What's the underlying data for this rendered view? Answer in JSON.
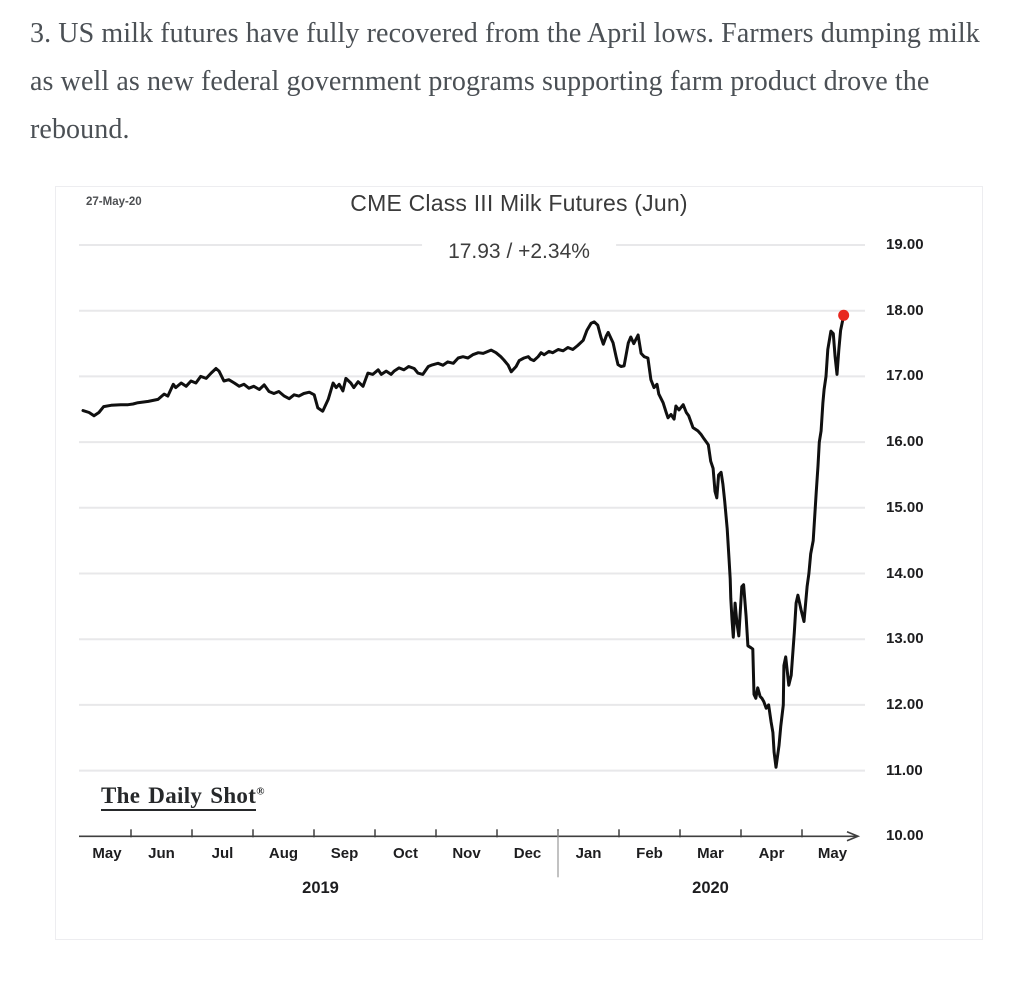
{
  "caption": {
    "text": "3. US milk futures have fully recovered from the April lows. Farmers dumping milk as well as new federal government programs supporting farm product drove the rebound."
  },
  "chart": {
    "date_stamp": "27-May-20",
    "title": "CME Class III Milk Futures (Jun)",
    "subtitle": "17.93  /  +2.34%",
    "watermark": "The Daily Shot",
    "watermark_mark": "®",
    "line_color": "#101010",
    "dot_color": "#e8271e",
    "grid_color": "#e8e8ea",
    "axis_color": "#3f3f3f",
    "divider_color": "#999999"
  },
  "chart_data": {
    "type": "line",
    "title": "CME Class III Milk Futures (Jun)",
    "as_of_date": "27-May-20",
    "last_value": 17.93,
    "change_pct": 2.34,
    "x_unit": "months since 2019-05-01 (0 = May 1, 2019)",
    "x_tick_labels": [
      "May",
      "Jun",
      "Jul",
      "Aug",
      "Sep",
      "Oct",
      "Nov",
      "Dec",
      "Jan",
      "Feb",
      "Mar",
      "Apr",
      "May"
    ],
    "year_labels": [
      "2019",
      "2020"
    ],
    "y_ticks": [
      19,
      18,
      17,
      16,
      15,
      14,
      13,
      12,
      11,
      10
    ],
    "y_tick_labels": [
      "19.00",
      "18.00",
      "17.00",
      "16.00",
      "15.00",
      "14.00",
      "13.00",
      "12.00",
      "11.00",
      "10.00"
    ],
    "ylim": [
      10,
      19.5
    ],
    "grid": true,
    "legend": false,
    "marker_on_last_point": true,
    "points": [
      [
        0.21,
        16.48
      ],
      [
        0.31,
        16.45
      ],
      [
        0.39,
        16.4
      ],
      [
        0.47,
        16.45
      ],
      [
        0.55,
        16.54
      ],
      [
        0.67,
        16.56
      ],
      [
        0.83,
        16.57
      ],
      [
        0.95,
        16.57
      ],
      [
        1.03,
        16.58
      ],
      [
        1.11,
        16.6
      ],
      [
        1.28,
        16.62
      ],
      [
        1.44,
        16.65
      ],
      [
        1.54,
        16.73
      ],
      [
        1.6,
        16.7
      ],
      [
        1.69,
        16.88
      ],
      [
        1.73,
        16.83
      ],
      [
        1.82,
        16.9
      ],
      [
        1.9,
        16.85
      ],
      [
        1.98,
        16.93
      ],
      [
        2.06,
        16.9
      ],
      [
        2.14,
        17.0
      ],
      [
        2.23,
        16.97
      ],
      [
        2.31,
        17.05
      ],
      [
        2.39,
        17.12
      ],
      [
        2.44,
        17.08
      ],
      [
        2.52,
        16.93
      ],
      [
        2.6,
        16.95
      ],
      [
        2.69,
        16.9
      ],
      [
        2.77,
        16.85
      ],
      [
        2.85,
        16.88
      ],
      [
        2.93,
        16.82
      ],
      [
        3.01,
        16.85
      ],
      [
        3.1,
        16.8
      ],
      [
        3.18,
        16.87
      ],
      [
        3.26,
        16.77
      ],
      [
        3.34,
        16.74
      ],
      [
        3.42,
        16.77
      ],
      [
        3.51,
        16.7
      ],
      [
        3.59,
        16.66
      ],
      [
        3.67,
        16.72
      ],
      [
        3.75,
        16.7
      ],
      [
        3.83,
        16.74
      ],
      [
        3.92,
        16.76
      ],
      [
        4.0,
        16.72
      ],
      [
        4.06,
        16.52
      ],
      [
        4.14,
        16.47
      ],
      [
        4.23,
        16.65
      ],
      [
        4.31,
        16.9
      ],
      [
        4.36,
        16.83
      ],
      [
        4.41,
        16.88
      ],
      [
        4.47,
        16.78
      ],
      [
        4.52,
        16.97
      ],
      [
        4.6,
        16.9
      ],
      [
        4.65,
        16.83
      ],
      [
        4.72,
        16.92
      ],
      [
        4.8,
        16.85
      ],
      [
        4.88,
        17.05
      ],
      [
        4.96,
        17.03
      ],
      [
        5.05,
        17.1
      ],
      [
        5.1,
        17.03
      ],
      [
        5.18,
        17.08
      ],
      [
        5.26,
        17.03
      ],
      [
        5.31,
        17.08
      ],
      [
        5.39,
        17.13
      ],
      [
        5.47,
        17.1
      ],
      [
        5.55,
        17.15
      ],
      [
        5.64,
        17.12
      ],
      [
        5.7,
        17.05
      ],
      [
        5.78,
        17.03
      ],
      [
        5.87,
        17.15
      ],
      [
        5.92,
        17.17
      ],
      [
        6.03,
        17.2
      ],
      [
        6.11,
        17.17
      ],
      [
        6.19,
        17.22
      ],
      [
        6.28,
        17.2
      ],
      [
        6.36,
        17.28
      ],
      [
        6.44,
        17.3
      ],
      [
        6.52,
        17.28
      ],
      [
        6.6,
        17.33
      ],
      [
        6.69,
        17.36
      ],
      [
        6.77,
        17.35
      ],
      [
        6.85,
        17.38
      ],
      [
        6.9,
        17.4
      ],
      [
        6.98,
        17.36
      ],
      [
        7.06,
        17.3
      ],
      [
        7.11,
        17.25
      ],
      [
        7.18,
        17.17
      ],
      [
        7.23,
        17.07
      ],
      [
        7.31,
        17.15
      ],
      [
        7.36,
        17.24
      ],
      [
        7.44,
        17.28
      ],
      [
        7.51,
        17.3
      ],
      [
        7.55,
        17.26
      ],
      [
        7.6,
        17.24
      ],
      [
        7.67,
        17.3
      ],
      [
        7.72,
        17.36
      ],
      [
        7.77,
        17.33
      ],
      [
        7.85,
        17.38
      ],
      [
        7.91,
        17.36
      ],
      [
        8.0,
        17.41
      ],
      [
        8.08,
        17.39
      ],
      [
        8.16,
        17.44
      ],
      [
        8.24,
        17.41
      ],
      [
        8.32,
        17.47
      ],
      [
        8.41,
        17.55
      ],
      [
        8.47,
        17.7
      ],
      [
        8.54,
        17.81
      ],
      [
        8.59,
        17.83
      ],
      [
        8.65,
        17.78
      ],
      [
        8.7,
        17.6
      ],
      [
        8.74,
        17.49
      ],
      [
        8.79,
        17.62
      ],
      [
        8.82,
        17.67
      ],
      [
        8.9,
        17.51
      ],
      [
        8.95,
        17.3
      ],
      [
        8.98,
        17.18
      ],
      [
        9.03,
        17.15
      ],
      [
        9.08,
        17.16
      ],
      [
        9.15,
        17.51
      ],
      [
        9.19,
        17.6
      ],
      [
        9.24,
        17.5
      ],
      [
        9.31,
        17.63
      ],
      [
        9.36,
        17.35
      ],
      [
        9.41,
        17.3
      ],
      [
        9.47,
        17.28
      ],
      [
        9.52,
        16.95
      ],
      [
        9.57,
        16.83
      ],
      [
        9.62,
        16.88
      ],
      [
        9.65,
        16.73
      ],
      [
        9.72,
        16.6
      ],
      [
        9.77,
        16.45
      ],
      [
        9.8,
        16.37
      ],
      [
        9.85,
        16.42
      ],
      [
        9.9,
        16.35
      ],
      [
        9.93,
        16.55
      ],
      [
        9.98,
        16.49
      ],
      [
        10.05,
        16.57
      ],
      [
        10.1,
        16.45
      ],
      [
        10.14,
        16.4
      ],
      [
        10.21,
        16.22
      ],
      [
        10.29,
        16.17
      ],
      [
        10.34,
        16.12
      ],
      [
        10.39,
        16.05
      ],
      [
        10.46,
        15.96
      ],
      [
        10.5,
        15.71
      ],
      [
        10.54,
        15.6
      ],
      [
        10.57,
        15.25
      ],
      [
        10.6,
        15.15
      ],
      [
        10.63,
        15.5
      ],
      [
        10.67,
        15.54
      ],
      [
        10.7,
        15.36
      ],
      [
        10.73,
        15.1
      ],
      [
        10.77,
        14.68
      ],
      [
        10.8,
        14.23
      ],
      [
        10.82,
        13.92
      ],
      [
        10.83,
        13.62
      ],
      [
        10.85,
        13.3
      ],
      [
        10.87,
        13.03
      ],
      [
        10.9,
        13.55
      ],
      [
        10.93,
        13.25
      ],
      [
        10.96,
        13.05
      ],
      [
        11.01,
        13.8
      ],
      [
        11.04,
        13.83
      ],
      [
        11.08,
        13.35
      ],
      [
        11.11,
        12.9
      ],
      [
        11.16,
        12.87
      ],
      [
        11.19,
        12.85
      ],
      [
        11.21,
        12.16
      ],
      [
        11.24,
        12.1
      ],
      [
        11.27,
        12.26
      ],
      [
        11.31,
        12.13
      ],
      [
        11.34,
        12.1
      ],
      [
        11.37,
        12.05
      ],
      [
        11.41,
        11.95
      ],
      [
        11.45,
        12.0
      ],
      [
        11.49,
        11.74
      ],
      [
        11.52,
        11.58
      ],
      [
        11.54,
        11.28
      ],
      [
        11.57,
        11.05
      ],
      [
        11.62,
        11.38
      ],
      [
        11.65,
        11.68
      ],
      [
        11.69,
        12.0
      ],
      [
        11.7,
        12.6
      ],
      [
        11.73,
        12.73
      ],
      [
        11.78,
        12.3
      ],
      [
        11.82,
        12.45
      ],
      [
        11.87,
        13.1
      ],
      [
        11.9,
        13.55
      ],
      [
        11.93,
        13.67
      ],
      [
        11.98,
        13.45
      ],
      [
        12.03,
        13.27
      ],
      [
        12.08,
        13.8
      ],
      [
        12.11,
        14.0
      ],
      [
        12.14,
        14.3
      ],
      [
        12.18,
        14.5
      ],
      [
        12.23,
        15.23
      ],
      [
        12.26,
        15.64
      ],
      [
        12.28,
        16.0
      ],
      [
        12.31,
        16.17
      ],
      [
        12.34,
        16.6
      ],
      [
        12.36,
        16.8
      ],
      [
        12.39,
        17.0
      ],
      [
        12.42,
        17.41
      ],
      [
        12.47,
        17.69
      ],
      [
        12.51,
        17.65
      ],
      [
        12.54,
        17.3
      ],
      [
        12.57,
        17.03
      ],
      [
        12.6,
        17.4
      ],
      [
        12.63,
        17.7
      ],
      [
        12.68,
        17.93
      ]
    ]
  }
}
